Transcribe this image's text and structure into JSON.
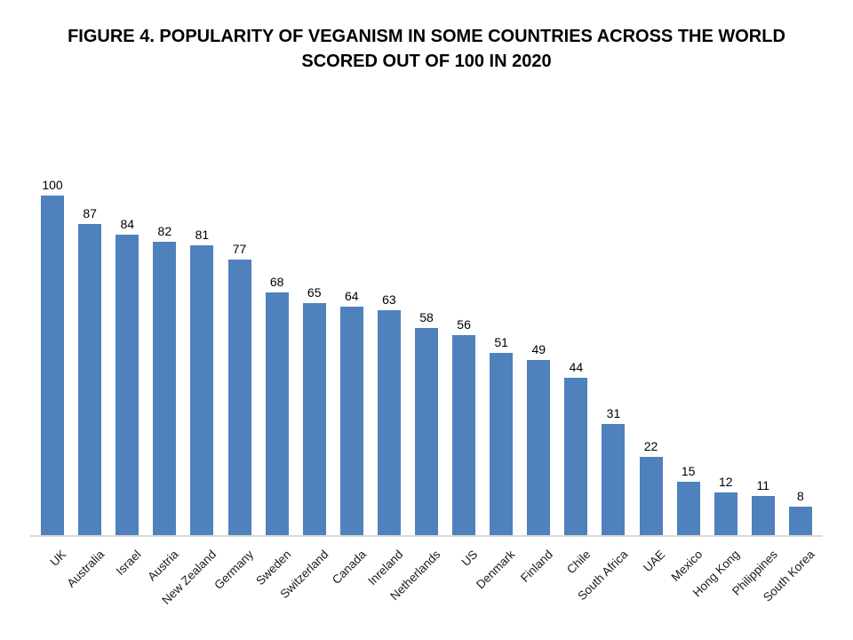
{
  "title": {
    "line1": "FIGURE 4. POPULARITY OF VEGANISM IN SOME COUNTRIES ACROSS THE WORLD",
    "line2": "SCORED OUT OF 100 IN 2020"
  },
  "chart_data": {
    "type": "bar",
    "title": "FIGURE 4. POPULARITY OF VEGANISM IN SOME COUNTRIES ACROSS THE WORLD SCORED OUT OF 100 IN 2020",
    "categories": [
      "UK",
      "Australia",
      "Israel",
      "Austria",
      "New Zealand",
      "Germany",
      "Sweden",
      "Switzerland",
      "Canada",
      "Inreland",
      "Netherlands",
      "US",
      "Denmark",
      "Finland",
      "Chile",
      "South Africa",
      "UAE",
      "Mexico",
      "Hong Kong",
      "Philippines",
      "South Korea"
    ],
    "values": [
      100,
      87,
      84,
      82,
      81,
      77,
      68,
      65,
      64,
      63,
      58,
      56,
      51,
      49,
      44,
      31,
      22,
      15,
      12,
      11,
      8
    ],
    "xlabel": "",
    "ylabel": "",
    "ylim": [
      0,
      100
    ],
    "grid": false,
    "legend": "none",
    "data_labels": true,
    "bar_color": "#4F81BD",
    "axis_line_color": "#D9D9D9",
    "x_label_rotation_deg": -45
  }
}
